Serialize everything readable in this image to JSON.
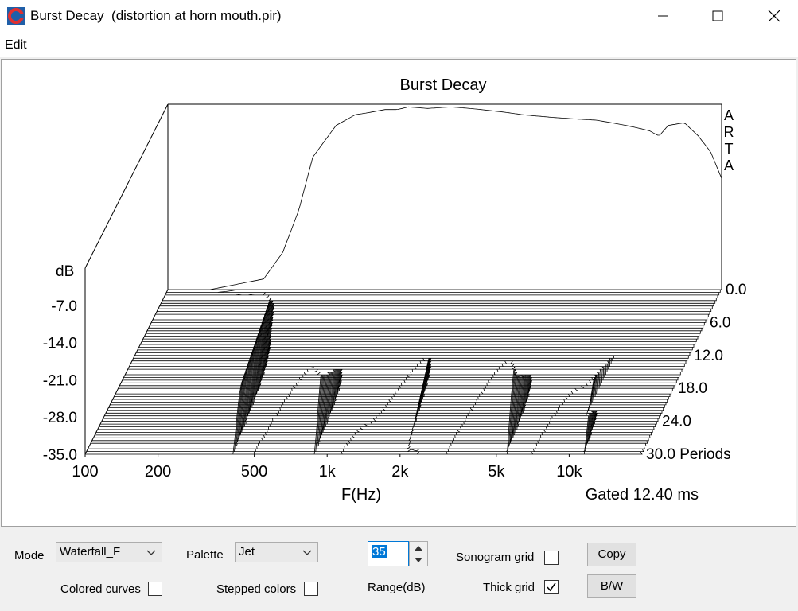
{
  "window": {
    "title": "Burst Decay  (distortion at horn mouth.pir)"
  },
  "menu": {
    "edit": "Edit"
  },
  "plot": {
    "title": "Burst Decay",
    "ylabel": "dB",
    "y_ticks": [
      "-7.0",
      "-14.0",
      "-21.0",
      "-28.0",
      "-35.0"
    ],
    "x_ticks": [
      "100",
      "200",
      "500",
      "1k",
      "2k",
      "5k",
      "10k"
    ],
    "xlabel": "F(Hz)",
    "z_ticks": [
      "0.0",
      "6.0",
      "12.0",
      "18.0",
      "24.0",
      "30.0 Periods"
    ],
    "brand": [
      "A",
      "R",
      "T",
      "A"
    ],
    "gated": "Gated 12.40 ms"
  },
  "chart_data": {
    "type": "area",
    "title": "Burst Decay",
    "xlabel": "F(Hz)",
    "ylabel": "dB",
    "zlabel": "Periods",
    "x_scale": "log",
    "xlim": [
      100,
      20000
    ],
    "ylim": [
      -35,
      0
    ],
    "zlim": [
      0,
      30
    ],
    "x_ticks": [
      100,
      200,
      500,
      1000,
      2000,
      5000,
      10000
    ],
    "y_ticks": [
      0,
      -7,
      -14,
      -21,
      -28,
      -35
    ],
    "z_ticks": [
      0,
      6,
      12,
      18,
      24,
      30
    ],
    "annotation": "Gated 12.40 ms",
    "series": [
      {
        "name": "0 Periods",
        "x": [
          150,
          250,
          300,
          350,
          400,
          500,
          600,
          700,
          800,
          900,
          1000,
          1200,
          1500,
          1800,
          2000,
          2500,
          3000,
          4000,
          5000,
          6000,
          7000,
          8000,
          9000,
          10000,
          11000,
          12000,
          14000,
          16000,
          18000,
          20000
        ],
        "y": [
          -35,
          -33,
          -28,
          -20,
          -10,
          -4,
          -2,
          -1.5,
          -1,
          -1,
          -0.5,
          -0.8,
          -0.5,
          -0.8,
          -1,
          -1.5,
          -2,
          -2.5,
          -2.8,
          -3,
          -3.5,
          -4,
          -4.5,
          -5,
          -6,
          -4,
          -3.5,
          -6,
          -9,
          -14
        ]
      }
    ]
  },
  "controls": {
    "mode_label": "Mode",
    "mode_value": "Waterfall_F",
    "palette_label": "Palette",
    "palette_value": "Jet",
    "range_value": "35",
    "range_label": "Range(dB)",
    "sonogram_grid_label": "Sonogram grid",
    "sonogram_grid_checked": false,
    "thick_grid_label": "Thick grid",
    "thick_grid_checked": true,
    "colored_curves_label": "Colored curves",
    "colored_curves_checked": false,
    "stepped_colors_label": "Stepped colors",
    "stepped_colors_checked": false,
    "copy_button": "Copy",
    "bw_button": "B/W"
  }
}
